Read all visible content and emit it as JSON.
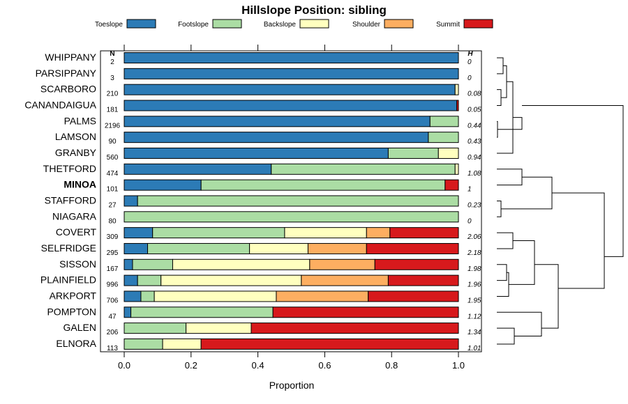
{
  "chart_data": {
    "type": "bar",
    "orientation": "horizontal",
    "stacked": true,
    "title": "Hillslope Position: sibling",
    "xlabel": "Proportion",
    "xlim": [
      0,
      1
    ],
    "xticks": [
      "0.0",
      "0.2",
      "0.4",
      "0.6",
      "0.8",
      "1.0"
    ],
    "n_header": "N",
    "h_header": "H",
    "legend_position": "top",
    "series": [
      {
        "name": "Toeslope",
        "color": "#2C7BB6"
      },
      {
        "name": "Footslope",
        "color": "#ABDDA4"
      },
      {
        "name": "Backslope",
        "color": "#FFFFBF"
      },
      {
        "name": "Shoulder",
        "color": "#FDAE61"
      },
      {
        "name": "Summit",
        "color": "#D7191C"
      }
    ],
    "rows": [
      {
        "label": "WHIPPANY",
        "n": "2",
        "h": "0",
        "bold": false,
        "values": [
          1.0,
          0,
          0,
          0,
          0
        ]
      },
      {
        "label": "PARSIPPANY",
        "n": "3",
        "h": "0",
        "bold": false,
        "values": [
          1.0,
          0,
          0,
          0,
          0
        ]
      },
      {
        "label": "SCARBORO",
        "n": "210",
        "h": "0.08",
        "bold": false,
        "values": [
          0.99,
          0,
          0.01,
          0,
          0
        ]
      },
      {
        "label": "CANANDAIGUA",
        "n": "181",
        "h": "0.05",
        "bold": false,
        "values": [
          0.995,
          0,
          0,
          0,
          0.005
        ]
      },
      {
        "label": "PALMS",
        "n": "2196",
        "h": "0.44",
        "bold": false,
        "values": [
          0.915,
          0.085,
          0,
          0,
          0
        ]
      },
      {
        "label": "LAMSON",
        "n": "90",
        "h": "0.43",
        "bold": false,
        "values": [
          0.91,
          0.09,
          0,
          0,
          0
        ]
      },
      {
        "label": "GRANBY",
        "n": "560",
        "h": "0.94",
        "bold": false,
        "values": [
          0.79,
          0.15,
          0.06,
          0,
          0
        ]
      },
      {
        "label": "THETFORD",
        "n": "474",
        "h": "1.08",
        "bold": false,
        "values": [
          0.44,
          0.55,
          0.01,
          0,
          0
        ]
      },
      {
        "label": "MINOA",
        "n": "101",
        "h": "1",
        "bold": true,
        "values": [
          0.23,
          0.73,
          0,
          0,
          0.04
        ]
      },
      {
        "label": "STAFFORD",
        "n": "27",
        "h": "0.23",
        "bold": false,
        "values": [
          0.04,
          0.96,
          0,
          0,
          0
        ]
      },
      {
        "label": "NIAGARA",
        "n": "80",
        "h": "0",
        "bold": false,
        "values": [
          0,
          1.0,
          0,
          0,
          0
        ]
      },
      {
        "label": "COVERT",
        "n": "309",
        "h": "2.06",
        "bold": false,
        "values": [
          0.085,
          0.395,
          0.245,
          0.07,
          0.205
        ]
      },
      {
        "label": "SELFRIDGE",
        "n": "295",
        "h": "2.18",
        "bold": false,
        "values": [
          0.07,
          0.305,
          0.175,
          0.175,
          0.275
        ]
      },
      {
        "label": "SISSON",
        "n": "167",
        "h": "1.98",
        "bold": false,
        "values": [
          0.025,
          0.12,
          0.41,
          0.195,
          0.25
        ]
      },
      {
        "label": "PLAINFIELD",
        "n": "996",
        "h": "1.96",
        "bold": false,
        "values": [
          0.04,
          0.07,
          0.42,
          0.26,
          0.21
        ]
      },
      {
        "label": "ARKPORT",
        "n": "706",
        "h": "1.95",
        "bold": false,
        "values": [
          0.05,
          0.04,
          0.365,
          0.275,
          0.27
        ]
      },
      {
        "label": "POMPTON",
        "n": "47",
        "h": "1.12",
        "bold": false,
        "values": [
          0.02,
          0.425,
          0,
          0,
          0.555
        ]
      },
      {
        "label": "GALEN",
        "n": "206",
        "h": "1.34",
        "bold": false,
        "values": [
          0,
          0.185,
          0.195,
          0,
          0.62
        ]
      },
      {
        "label": "ELNORA",
        "n": "113",
        "h": "1.01",
        "bold": false,
        "values": [
          0,
          0.115,
          0.115,
          0,
          0.77
        ]
      }
    ]
  }
}
